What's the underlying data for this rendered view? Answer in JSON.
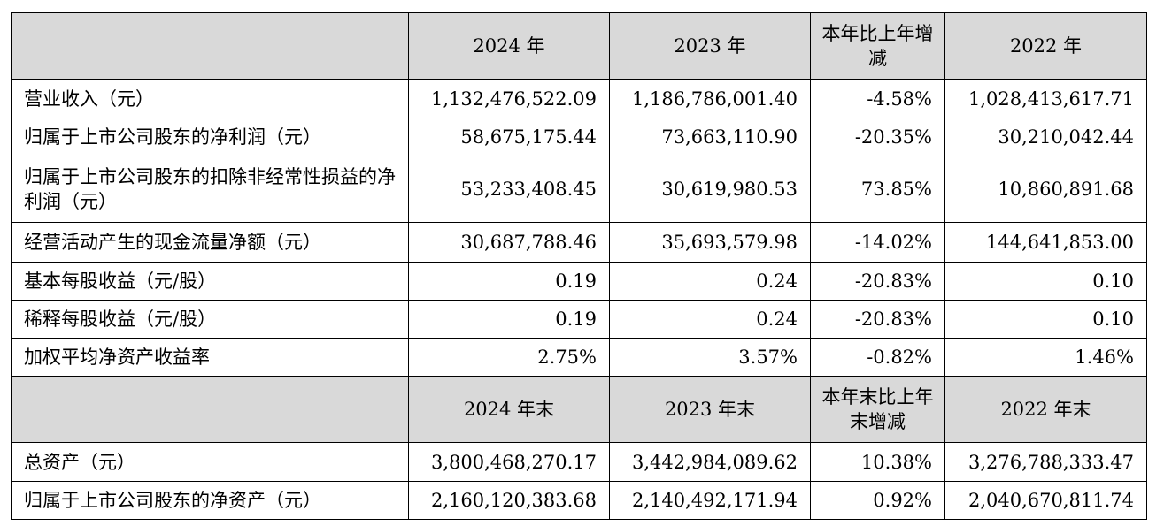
{
  "header1": {
    "corner": "",
    "col1": "2024 年",
    "col2": "2023 年",
    "col3": "本年比上年增减",
    "col4": "2022 年"
  },
  "rows1": [
    {
      "label": "营业收入（元）",
      "v2024": "1,132,476,522.09",
      "v2023": "1,186,786,001.40",
      "change": "-4.58%",
      "v2022": "1,028,413,617.71"
    },
    {
      "label": "归属于上市公司股东的净利润（元）",
      "v2024": "58,675,175.44",
      "v2023": "73,663,110.90",
      "change": "-20.35%",
      "v2022": "30,210,042.44"
    },
    {
      "label": "归属于上市公司股东的扣除非经常性损益的净利润（元）",
      "v2024": "53,233,408.45",
      "v2023": "30,619,980.53",
      "change": "73.85%",
      "v2022": "10,860,891.68"
    },
    {
      "label": "经营活动产生的现金流量净额（元）",
      "v2024": "30,687,788.46",
      "v2023": "35,693,579.98",
      "change": "-14.02%",
      "v2022": "144,641,853.00"
    },
    {
      "label": "基本每股收益（元/股）",
      "v2024": "0.19",
      "v2023": "0.24",
      "change": "-20.83%",
      "v2022": "0.10"
    },
    {
      "label": "稀释每股收益（元/股）",
      "v2024": "0.19",
      "v2023": "0.24",
      "change": "-20.83%",
      "v2022": "0.10"
    },
    {
      "label": "加权平均净资产收益率",
      "v2024": "2.75%",
      "v2023": "3.57%",
      "change": "-0.82%",
      "v2022": "1.46%"
    }
  ],
  "header2": {
    "corner": "",
    "col1": "2024 年末",
    "col2": "2023 年末",
    "col3": "本年末比上年末增减",
    "col4": "2022 年末"
  },
  "rows2": [
    {
      "label": "总资产（元）",
      "v2024": "3,800,468,270.17",
      "v2023": "3,442,984,089.62",
      "change": "10.38%",
      "v2022": "3,276,788,333.47"
    },
    {
      "label": "归属于上市公司股东的净资产（元）",
      "v2024": "2,160,120,383.68",
      "v2023": "2,140,492,171.94",
      "change": "0.92%",
      "v2022": "2,040,670,811.74"
    }
  ]
}
